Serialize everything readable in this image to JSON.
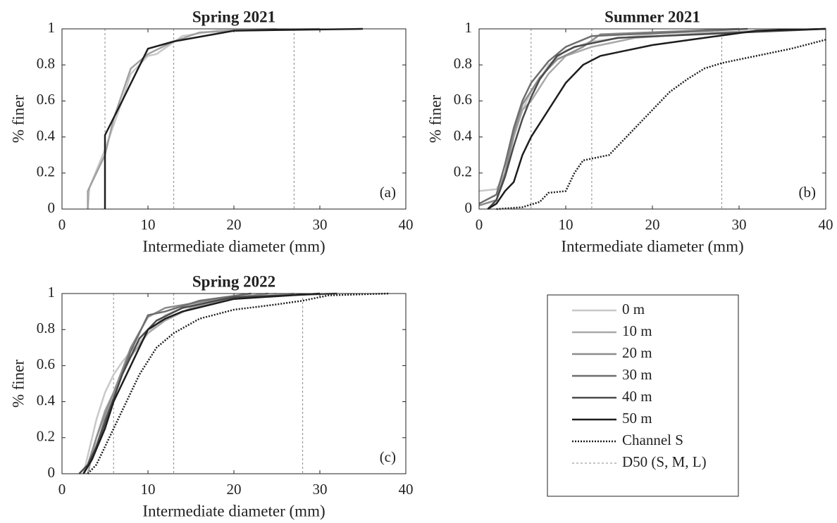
{
  "chart_data": [
    {
      "type": "line",
      "title": "Spring 2021",
      "xlabel": "Intermediate diameter (mm)",
      "ylabel": "% finer",
      "annotation": "(a)",
      "xlim": [
        0,
        40
      ],
      "ylim": [
        0,
        1
      ],
      "xticks": [
        0,
        10,
        20,
        30,
        40
      ],
      "yticks": [
        0,
        0.2,
        0.4,
        0.6,
        0.8,
        1
      ],
      "series": [
        {
          "color": "#c8c8c8",
          "line_style": "solid",
          "x": [
            3,
            3.2,
            5,
            7,
            8,
            10,
            11,
            14,
            18,
            25
          ],
          "values": [
            0,
            0.12,
            0.33,
            0.6,
            0.75,
            0.85,
            0.86,
            0.96,
            0.99,
            1
          ]
        },
        {
          "color": "#a0a0a0",
          "line_style": "solid",
          "x": [
            3,
            3,
            5,
            6,
            8,
            10,
            13,
            16,
            20,
            30
          ],
          "values": [
            0,
            0.1,
            0.3,
            0.5,
            0.78,
            0.86,
            0.93,
            0.98,
            0.99,
            1
          ]
        },
        {
          "color": "#1e1e1e",
          "line_style": "solid",
          "x": [
            5,
            5,
            7,
            10,
            13,
            20,
            35
          ],
          "values": [
            0,
            0.41,
            0.6,
            0.89,
            0.93,
            0.99,
            1
          ]
        }
      ],
      "reference_lines": {
        "color": "#888888",
        "line_style": "dashed",
        "x": [
          5,
          13,
          27
        ]
      }
    },
    {
      "type": "line",
      "title": "Summer 2021",
      "xlabel": "Intermediate diameter (mm)",
      "ylabel": "% finer",
      "annotation": "(b)",
      "xlim": [
        0,
        40
      ],
      "ylim": [
        0,
        1
      ],
      "xticks": [
        0,
        10,
        20,
        30,
        40
      ],
      "yticks": [
        0,
        0.2,
        0.4,
        0.6,
        0.8,
        1
      ],
      "series": [
        {
          "color": "#c8c8c8",
          "line_style": "solid",
          "x": [
            0,
            2,
            3,
            4,
            5,
            6,
            7,
            8,
            10,
            13,
            20,
            30
          ],
          "values": [
            0.1,
            0.11,
            0.2,
            0.4,
            0.55,
            0.65,
            0.72,
            0.8,
            0.88,
            0.93,
            0.97,
            1
          ]
        },
        {
          "color": "#a8a8a8",
          "line_style": "solid",
          "x": [
            0,
            2,
            3,
            4,
            5,
            6,
            8,
            10,
            13,
            18,
            27,
            40
          ],
          "values": [
            0.02,
            0.05,
            0.2,
            0.4,
            0.55,
            0.6,
            0.75,
            0.85,
            0.9,
            0.95,
            0.98,
            1
          ]
        },
        {
          "color": "#8c8c8c",
          "line_style": "solid",
          "x": [
            0,
            2,
            3,
            4,
            5,
            7,
            9,
            12,
            14,
            30
          ],
          "values": [
            0.02,
            0.05,
            0.2,
            0.42,
            0.58,
            0.73,
            0.83,
            0.9,
            0.97,
            1
          ]
        },
        {
          "color": "#6e6e6e",
          "line_style": "solid",
          "x": [
            0,
            2,
            3,
            4,
            5,
            6,
            8,
            10,
            13,
            31
          ],
          "values": [
            0.03,
            0.08,
            0.25,
            0.45,
            0.6,
            0.7,
            0.82,
            0.9,
            0.96,
            1
          ]
        },
        {
          "color": "#4a4a4a",
          "line_style": "solid",
          "x": [
            1,
            2,
            3,
            4,
            5,
            6,
            7,
            9,
            11,
            13,
            16,
            40
          ],
          "values": [
            0,
            0.05,
            0.18,
            0.35,
            0.5,
            0.62,
            0.72,
            0.85,
            0.9,
            0.92,
            0.95,
            1
          ]
        },
        {
          "color": "#1e1e1e",
          "line_style": "solid",
          "x": [
            1,
            2,
            3,
            4,
            5,
            6,
            8,
            10,
            12,
            14,
            20,
            26,
            32,
            40
          ],
          "values": [
            0,
            0.03,
            0.1,
            0.15,
            0.3,
            0.4,
            0.55,
            0.7,
            0.8,
            0.85,
            0.91,
            0.95,
            0.99,
            1
          ]
        },
        {
          "color": "#1e1e1e",
          "line_style": "dotted",
          "x": [
            2,
            5,
            7,
            8,
            10,
            11,
            12,
            15,
            16,
            18,
            20,
            22,
            24,
            26,
            28,
            32,
            36,
            40
          ],
          "values": [
            0,
            0.01,
            0.04,
            0.09,
            0.1,
            0.2,
            0.27,
            0.3,
            0.35,
            0.45,
            0.55,
            0.65,
            0.72,
            0.78,
            0.81,
            0.85,
            0.89,
            0.94
          ]
        }
      ],
      "reference_lines": {
        "color": "#888888",
        "line_style": "dashed",
        "x": [
          6,
          13,
          28
        ]
      }
    },
    {
      "type": "line",
      "title": "Spring 2022",
      "xlabel": "Intermediate diameter (mm)",
      "ylabel": "% finer",
      "annotation": "(c)",
      "xlim": [
        0,
        40
      ],
      "ylim": [
        0,
        1
      ],
      "xticks": [
        0,
        10,
        20,
        30,
        40
      ],
      "yticks": [
        0,
        0.2,
        0.4,
        0.6,
        0.8,
        1
      ],
      "series": [
        {
          "name": "0 m",
          "color": "#c8c8c8",
          "line_style": "solid",
          "x": [
            2.5,
            3,
            4,
            5,
            6,
            7,
            8,
            10,
            12,
            15,
            20,
            25
          ],
          "values": [
            0,
            0.1,
            0.3,
            0.45,
            0.55,
            0.62,
            0.68,
            0.78,
            0.88,
            0.94,
            0.97,
            1
          ]
        },
        {
          "name": "10 m",
          "color": "#a8a8a8",
          "line_style": "solid",
          "x": [
            3,
            4,
            5,
            6,
            8,
            10,
            12,
            15,
            20,
            27
          ],
          "values": [
            0,
            0.2,
            0.35,
            0.45,
            0.65,
            0.78,
            0.85,
            0.92,
            0.97,
            1
          ]
        },
        {
          "name": "20 m",
          "color": "#8c8c8c",
          "line_style": "solid",
          "x": [
            2.5,
            3,
            4,
            5,
            6,
            8,
            10,
            12,
            17,
            24
          ],
          "values": [
            0,
            0.05,
            0.2,
            0.33,
            0.45,
            0.7,
            0.87,
            0.92,
            0.96,
            1
          ]
        },
        {
          "name": "30 m",
          "color": "#6e6e6e",
          "line_style": "solid",
          "x": [
            2.5,
            3.5,
            5,
            6,
            8,
            10,
            12,
            16,
            22
          ],
          "values": [
            0,
            0.08,
            0.3,
            0.42,
            0.68,
            0.88,
            0.9,
            0.96,
            1
          ]
        },
        {
          "name": "40 m",
          "color": "#4a4a4a",
          "line_style": "solid",
          "x": [
            2,
            3,
            4,
            5,
            7,
            9,
            11,
            14,
            20,
            32
          ],
          "values": [
            0,
            0.05,
            0.15,
            0.28,
            0.55,
            0.75,
            0.85,
            0.92,
            0.98,
            1
          ]
        },
        {
          "name": "50 m",
          "color": "#1e1e1e",
          "line_style": "solid",
          "x": [
            2.5,
            3.5,
            5,
            6,
            8,
            10,
            12,
            14,
            20,
            30
          ],
          "values": [
            0,
            0.08,
            0.25,
            0.4,
            0.6,
            0.8,
            0.86,
            0.9,
            0.97,
            1
          ]
        },
        {
          "name": "Channel S",
          "color": "#1e1e1e",
          "line_style": "dotted",
          "x": [
            3,
            4,
            5,
            7,
            9,
            11,
            13,
            16,
            20,
            25,
            28,
            31,
            38
          ],
          "values": [
            0,
            0.05,
            0.15,
            0.35,
            0.55,
            0.7,
            0.78,
            0.86,
            0.91,
            0.94,
            0.96,
            0.99,
            1
          ]
        }
      ],
      "reference_lines": {
        "name": "D50 (S, M, L)",
        "color": "#888888",
        "line_style": "dashed",
        "x": [
          6,
          13,
          28
        ]
      },
      "legend": true
    }
  ]
}
